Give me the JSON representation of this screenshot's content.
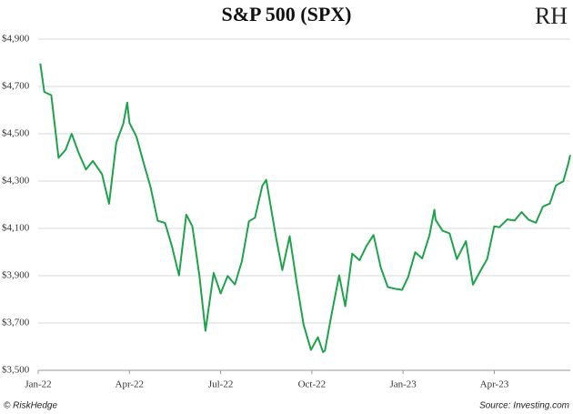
{
  "chart_data": {
    "type": "line",
    "title": "S&P 500 (SPX)",
    "logo": "RH",
    "credit": "© RiskHedge",
    "source": "Source: Investing.com",
    "grid": true,
    "xlim": [
      0,
      17.5
    ],
    "xticks": [
      {
        "value": 0,
        "label": "Jan-22"
      },
      {
        "value": 3,
        "label": "Apr-22"
      },
      {
        "value": 6,
        "label": "Jul-22"
      },
      {
        "value": 9,
        "label": "Oct-22"
      },
      {
        "value": 12,
        "label": "Jan-23"
      },
      {
        "value": 15,
        "label": "Apr-23"
      }
    ],
    "ylim": [
      3500,
      4900
    ],
    "yticks": [
      {
        "value": 3500,
        "label": "$3,500"
      },
      {
        "value": 3700,
        "label": "$3,700"
      },
      {
        "value": 3900,
        "label": "$3,900"
      },
      {
        "value": 4100,
        "label": "$4,100"
      },
      {
        "value": 4300,
        "label": "$4,300"
      },
      {
        "value": 4500,
        "label": "$4,500"
      },
      {
        "value": 4700,
        "label": "$4,700"
      },
      {
        "value": 4900,
        "label": "$4,900"
      }
    ],
    "x": [
      0.07,
      0.2,
      0.43,
      0.67,
      0.9,
      1.1,
      1.33,
      1.57,
      1.8,
      2.1,
      2.33,
      2.57,
      2.8,
      2.93,
      3.0,
      3.23,
      3.43,
      3.7,
      3.93,
      4.17,
      4.4,
      4.63,
      4.87,
      5.07,
      5.3,
      5.5,
      5.77,
      6.0,
      6.23,
      6.47,
      6.7,
      6.93,
      7.13,
      7.37,
      7.5,
      7.6,
      7.83,
      8.03,
      8.27,
      8.5,
      8.73,
      8.97,
      9.2,
      9.37,
      9.43,
      9.67,
      9.9,
      10.1,
      10.33,
      10.57,
      10.8,
      11.03,
      11.27,
      11.5,
      11.73,
      11.97,
      12.17,
      12.4,
      12.63,
      12.87,
      13.03,
      13.07,
      13.3,
      13.53,
      13.77,
      14.07,
      14.3,
      14.53,
      14.77,
      15.0,
      15.17,
      15.43,
      15.67,
      15.9,
      16.13,
      16.37,
      16.6,
      16.83,
      17.03,
      17.27,
      17.43,
      17.5
    ],
    "series": [
      {
        "name": "S&P 500",
        "color": "#1fa34a",
        "values": [
          4797,
          4677,
          4663,
          4398,
          4432,
          4500,
          4419,
          4349,
          4385,
          4329,
          4204,
          4463,
          4543,
          4632,
          4546,
          4488,
          4393,
          4272,
          4132,
          4123,
          4024,
          3901,
          4158,
          4109,
          3901,
          3667,
          3912,
          3825,
          3899,
          3863,
          3962,
          4130,
          4145,
          4280,
          4305,
          4228,
          4058,
          3924,
          4067,
          3873,
          3693,
          3586,
          3640,
          3577,
          3583,
          3752,
          3901,
          3771,
          3993,
          3965,
          4026,
          4072,
          3934,
          3852,
          3845,
          3840,
          3895,
          3999,
          3973,
          4071,
          4179,
          4136,
          4090,
          4079,
          3970,
          4046,
          3862,
          3917,
          3971,
          4109,
          4105,
          4138,
          4133,
          4169,
          4136,
          4124,
          4192,
          4205,
          4282,
          4299,
          4372,
          4410
        ]
      }
    ]
  }
}
